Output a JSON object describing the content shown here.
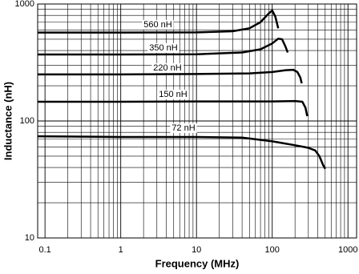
{
  "chart_data": {
    "type": "line",
    "xlabel": "Frequency (MHz)",
    "ylabel": "Inductance (nH)",
    "xscale": "log",
    "yscale": "log",
    "grid": true,
    "color": "#000000",
    "xlim": [
      0.08,
      1300
    ],
    "ylim": [
      10,
      1000
    ],
    "xticks": [
      0.1,
      1,
      10,
      100,
      1000
    ],
    "yticks": [
      10,
      100,
      1000
    ],
    "xticks_minor": [
      0.2,
      0.3,
      0.4,
      0.5,
      0.6,
      0.7,
      0.8,
      0.9,
      2,
      3,
      4,
      5,
      6,
      7,
      8,
      9,
      20,
      30,
      40,
      50,
      60,
      70,
      80,
      90,
      200,
      300,
      400,
      500,
      600,
      700,
      800,
      900
    ],
    "yticks_minor": [
      20,
      30,
      40,
      50,
      60,
      70,
      80,
      90,
      200,
      300,
      400,
      500,
      600,
      700,
      800,
      900
    ],
    "series": [
      {
        "name": "560 nH",
        "color": "#000000",
        "x": [
          0.08,
          1,
          10,
          30,
          50,
          70,
          90,
          100,
          110,
          120
        ],
        "values": [
          570,
          570,
          572,
          585,
          620,
          700,
          830,
          880,
          780,
          620
        ]
      },
      {
        "name": "350 nH",
        "color": "#000000",
        "x": [
          0.08,
          1,
          10,
          40,
          70,
          100,
          120,
          135,
          150,
          160
        ],
        "values": [
          370,
          370,
          372,
          385,
          410,
          460,
          505,
          500,
          430,
          385
        ]
      },
      {
        "name": "220 nH",
        "color": "#000000",
        "x": [
          0.08,
          1,
          10,
          50,
          100,
          150,
          190,
          215,
          235,
          245
        ],
        "values": [
          250,
          250,
          252,
          255,
          262,
          272,
          274,
          262,
          235,
          210
        ]
      },
      {
        "name": "150 nH",
        "color": "#000000",
        "x": [
          0.08,
          1,
          10,
          100,
          200,
          250,
          275,
          290
        ],
        "values": [
          146,
          146,
          147,
          147,
          148,
          146,
          130,
          110
        ]
      },
      {
        "name": "72 nH",
        "color": "#000000",
        "x": [
          0.08,
          1,
          10,
          40,
          100,
          200,
          300,
          370,
          420,
          470,
          500
        ],
        "values": [
          74,
          73,
          73,
          72,
          67,
          62,
          59,
          56,
          50,
          42,
          39
        ]
      }
    ]
  }
}
